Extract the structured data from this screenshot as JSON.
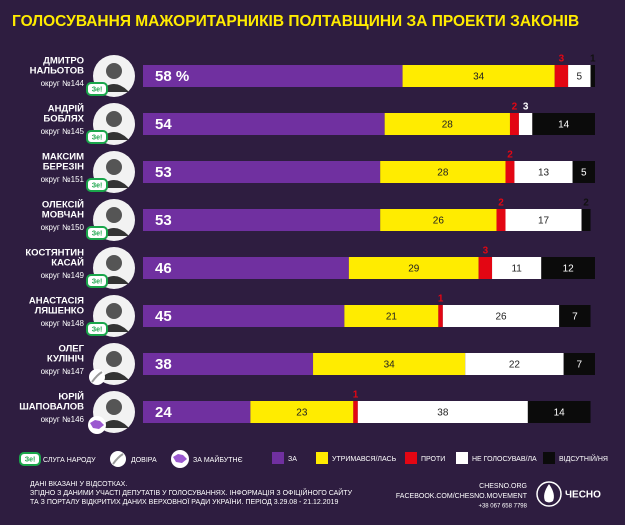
{
  "chart_data": {
    "type": "stacked-bar-horizontal",
    "title": "ГОЛОСУВАННЯ МАЖОРИТАРНИКІВ ПОЛТАВЩИНИ ЗА ПРОЕКТИ ЗАКОНІВ",
    "names": [
      [
        "ДМИТРО",
        "НАЛЬОТОВ"
      ],
      [
        "АНДРІЙ",
        "БОБЛЯХ"
      ],
      [
        "МАКСИМ",
        "БЕРЕЗІН"
      ],
      [
        "ОЛЕКСІЙ",
        "МОВЧАН"
      ],
      [
        "КОСТЯНТИН",
        "КАСАЙ"
      ],
      [
        "АНАСТАСІЯ",
        "ЛЯШЕНКО"
      ],
      [
        "ОЛЕГ",
        "КУЛІНІЧ"
      ],
      [
        "ЮРІЙ",
        "ШАПОВАЛОВ"
      ]
    ],
    "districts": [
      "округ №144",
      "округ №145",
      "округ №151",
      "округ №150",
      "округ №149",
      "округ №148",
      "округ №147",
      "округ №146"
    ],
    "row_party": [
      0,
      0,
      0,
      0,
      0,
      0,
      1,
      2
    ],
    "parties": [
      {
        "badge": "Зе!",
        "label": "СЛУГА НАРОДУ",
        "color": "#1aa64b"
      },
      {
        "label": "ДОВІРА",
        "color": "#9a9a9a"
      },
      {
        "label": "ЗА МАЙБУТНЄ",
        "color": "#9b59d0"
      }
    ],
    "xlim": [
      0,
      101
    ],
    "series": [
      {
        "name": "ЗА",
        "color": "#7030a0",
        "values": [
          58,
          54,
          53,
          53,
          46,
          45,
          38,
          24
        ],
        "value_labels": [
          "58 %",
          "54",
          "53",
          "53",
          "46",
          "45",
          "38",
          "24"
        ]
      },
      {
        "name": "УТРИМАВСЯ/ЛАСЬ",
        "color": "#ffec00",
        "values": [
          34,
          28,
          28,
          26,
          29,
          21,
          34,
          23
        ]
      },
      {
        "name": "ПРОТИ",
        "color": "#e30613",
        "values": [
          3,
          2,
          2,
          2,
          3,
          1,
          0,
          1
        ]
      },
      {
        "name": "НЕ ГОЛОСУВАВ/ЛА",
        "color": "#ffffff",
        "values": [
          5,
          3,
          13,
          17,
          11,
          26,
          22,
          38
        ]
      },
      {
        "name": "ВІДСУТНІЙ/НЯ",
        "color": "#0b0b0b",
        "values": [
          1,
          14,
          5,
          2,
          12,
          7,
          7,
          14
        ]
      }
    ],
    "footnotes": [
      "ДАНІ ВКАЗАНІ У ВІДСОТКАХ.",
      "ЗГІДНО З ДАНИМИ УЧАСТІ ДЕПУТАТІВ У ГОЛОСУВАННЯХ. ІНФОРМАЦІЯ З ОФІЦІЙНОГО САЙТУ",
      "ТА З ПОРТАЛУ ВІДКРИТИХ ДАНИХ ВЕРХОВНОЇ РАДИ УКРАЇНИ. ПЕРІОД 3.29.08 - 21.12.2019"
    ],
    "contacts": [
      "CHESNO.ORG",
      "FACEBOOK.COM/CHESNO.MOVEMENT",
      "+38 067 658 7798"
    ],
    "logo": "ЧЕСНО"
  }
}
